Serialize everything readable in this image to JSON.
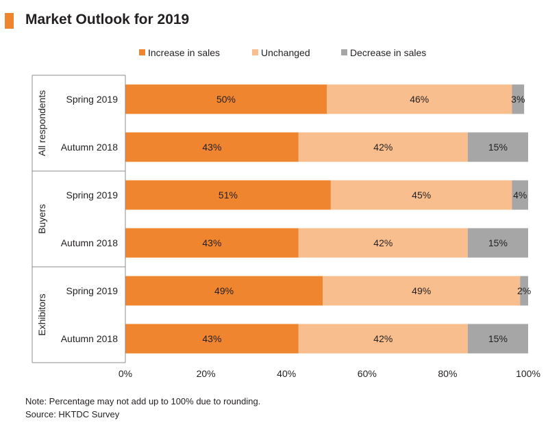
{
  "header": {
    "title": "Market Outlook for 2019"
  },
  "chart_data": {
    "type": "bar",
    "orientation": "horizontal",
    "stacked": true,
    "title": "Market Outlook for 2019",
    "groups": [
      {
        "name": "All respondents",
        "categories": [
          "Spring 2019",
          "Autumn 2018"
        ]
      },
      {
        "name": "Buyers",
        "categories": [
          "Spring 2019",
          "Autumn 2018"
        ]
      },
      {
        "name": "Exhibitors",
        "categories": [
          "Spring 2019",
          "Autumn 2018"
        ]
      }
    ],
    "series": [
      {
        "name": "Increase in sales",
        "color": "#f0852f",
        "values": [
          50,
          43,
          51,
          43,
          49,
          43
        ]
      },
      {
        "name": "Unchanged",
        "color": "#f9be8e",
        "values": [
          46,
          42,
          45,
          42,
          49,
          42
        ]
      },
      {
        "name": "Decrease in sales",
        "color": "#a6a6a6",
        "values": [
          3,
          15,
          4,
          15,
          2,
          15
        ]
      }
    ],
    "data_labels": [
      [
        "50%",
        "46%",
        "3%"
      ],
      [
        "43%",
        "42%",
        "15%"
      ],
      [
        "51%",
        "45%",
        "4%"
      ],
      [
        "43%",
        "42%",
        "15%"
      ],
      [
        "49%",
        "49%",
        "2%"
      ],
      [
        "43%",
        "42%",
        "15%"
      ]
    ],
    "x_ticks": [
      "0%",
      "20%",
      "40%",
      "60%",
      "80%",
      "100%"
    ],
    "xlim": [
      0,
      100
    ],
    "legend_position": "top",
    "grid": false
  },
  "notes": {
    "note": "Note: Percentage may not add up to 100% due to rounding.",
    "source": "Source: HKTDC Survey"
  }
}
